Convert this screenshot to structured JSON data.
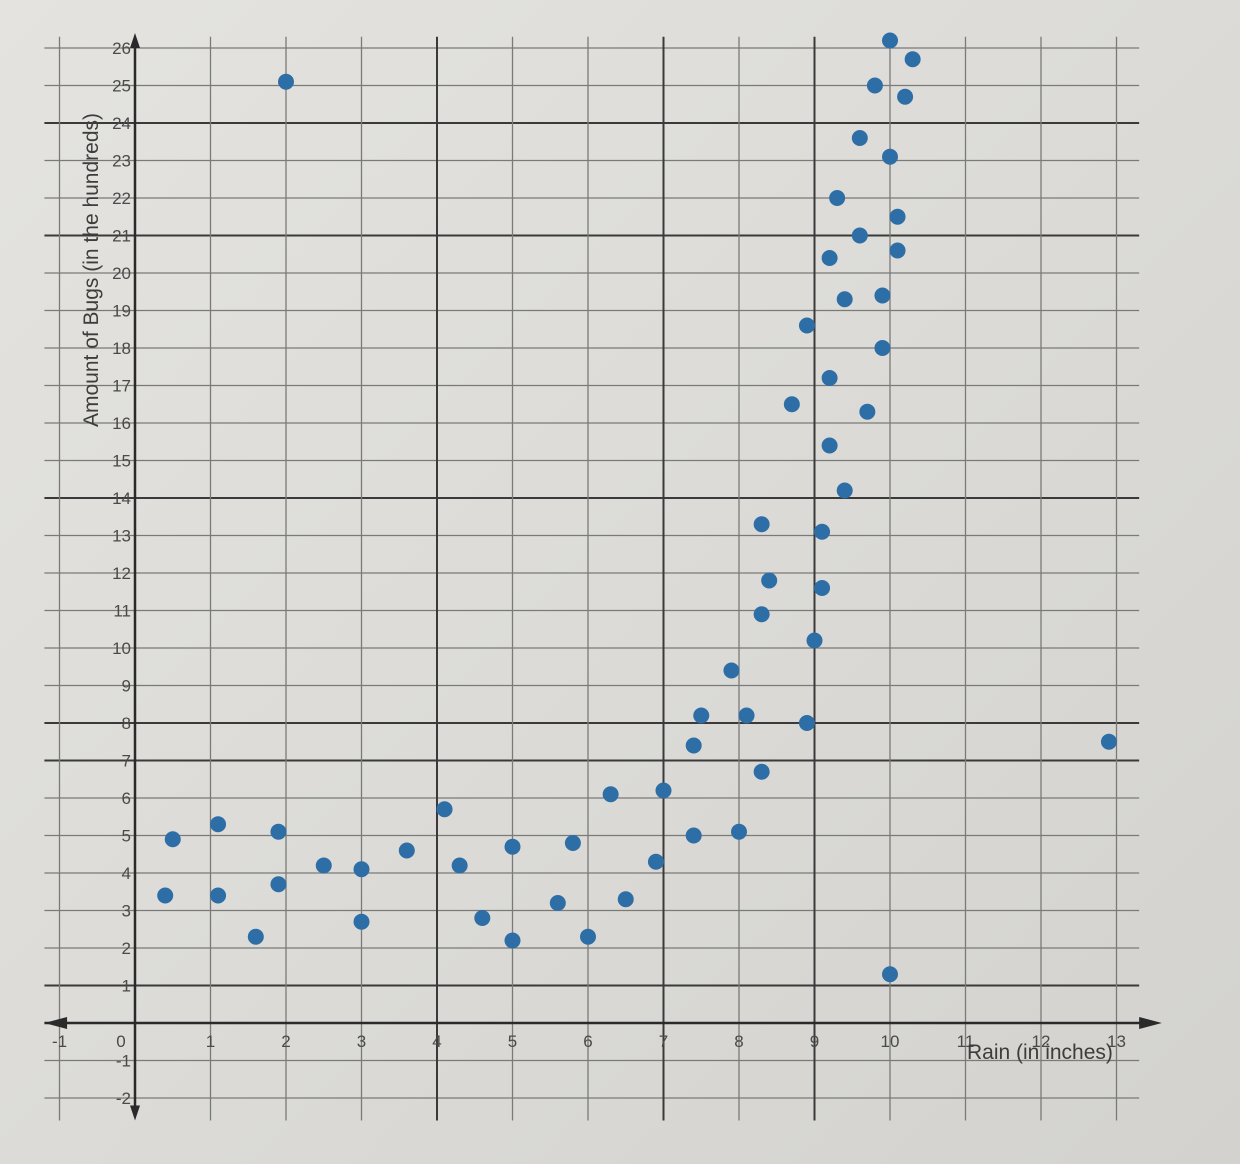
{
  "chart_data": {
    "type": "scatter",
    "title": "",
    "xlabel": "Rain (in inches)",
    "ylabel": "Amount of Bugs (in the hundreds)",
    "xlim": [
      -1,
      13.5
    ],
    "ylim": [
      -2,
      26
    ],
    "x_ticks": [
      -1,
      0,
      1,
      2,
      3,
      4,
      5,
      6,
      7,
      8,
      9,
      10,
      11,
      12,
      13
    ],
    "y_ticks": [
      -2,
      -1,
      1,
      2,
      3,
      4,
      5,
      6,
      7,
      8,
      9,
      10,
      11,
      12,
      13,
      14,
      15,
      16,
      17,
      18,
      19,
      20,
      21,
      22,
      23,
      24,
      25,
      26
    ],
    "grid": true,
    "legend": null,
    "point_color": "#2e6ea6",
    "series": [
      {
        "name": "Bugs vs Rain",
        "points": [
          {
            "x": 0.5,
            "y": 4.9
          },
          {
            "x": 0.4,
            "y": 3.4
          },
          {
            "x": 1.1,
            "y": 5.3
          },
          {
            "x": 1.1,
            "y": 3.4
          },
          {
            "x": 1.6,
            "y": 2.3
          },
          {
            "x": 1.9,
            "y": 5.1
          },
          {
            "x": 1.9,
            "y": 3.7
          },
          {
            "x": 2.0,
            "y": 25.1
          },
          {
            "x": 2.5,
            "y": 4.2
          },
          {
            "x": 3.0,
            "y": 4.1
          },
          {
            "x": 3.0,
            "y": 2.7
          },
          {
            "x": 3.6,
            "y": 4.6
          },
          {
            "x": 4.1,
            "y": 5.7
          },
          {
            "x": 4.3,
            "y": 4.2
          },
          {
            "x": 4.6,
            "y": 2.8
          },
          {
            "x": 5.0,
            "y": 4.7
          },
          {
            "x": 5.0,
            "y": 2.2
          },
          {
            "x": 5.6,
            "y": 3.2
          },
          {
            "x": 5.8,
            "y": 4.8
          },
          {
            "x": 6.0,
            "y": 2.3
          },
          {
            "x": 6.3,
            "y": 6.1
          },
          {
            "x": 6.5,
            "y": 3.3
          },
          {
            "x": 7.0,
            "y": 6.2
          },
          {
            "x": 6.9,
            "y": 4.3
          },
          {
            "x": 7.4,
            "y": 5.0
          },
          {
            "x": 7.4,
            "y": 7.4
          },
          {
            "x": 7.5,
            "y": 8.2
          },
          {
            "x": 7.9,
            "y": 9.4
          },
          {
            "x": 8.0,
            "y": 5.1
          },
          {
            "x": 8.1,
            "y": 8.2
          },
          {
            "x": 8.3,
            "y": 6.7
          },
          {
            "x": 8.3,
            "y": 10.9
          },
          {
            "x": 8.4,
            "y": 11.8
          },
          {
            "x": 8.3,
            "y": 13.3
          },
          {
            "x": 8.9,
            "y": 8.0
          },
          {
            "x": 9.0,
            "y": 10.2
          },
          {
            "x": 9.1,
            "y": 11.6
          },
          {
            "x": 9.1,
            "y": 13.1
          },
          {
            "x": 9.4,
            "y": 14.2
          },
          {
            "x": 9.2,
            "y": 15.4
          },
          {
            "x": 8.7,
            "y": 16.5
          },
          {
            "x": 9.7,
            "y": 16.3
          },
          {
            "x": 9.2,
            "y": 17.2
          },
          {
            "x": 9.9,
            "y": 18.0
          },
          {
            "x": 8.9,
            "y": 18.6
          },
          {
            "x": 9.4,
            "y": 19.3
          },
          {
            "x": 9.9,
            "y": 19.4
          },
          {
            "x": 9.2,
            "y": 20.4
          },
          {
            "x": 10.1,
            "y": 20.6
          },
          {
            "x": 9.6,
            "y": 21.0
          },
          {
            "x": 10.1,
            "y": 21.5
          },
          {
            "x": 9.3,
            "y": 22.0
          },
          {
            "x": 10.0,
            "y": 23.1
          },
          {
            "x": 9.6,
            "y": 23.6
          },
          {
            "x": 10.2,
            "y": 24.7
          },
          {
            "x": 9.8,
            "y": 25.0
          },
          {
            "x": 10.3,
            "y": 25.7
          },
          {
            "x": 10.0,
            "y": 26.2
          },
          {
            "x": 10.0,
            "y": 1.3
          },
          {
            "x": 12.9,
            "y": 7.5
          }
        ]
      }
    ]
  }
}
